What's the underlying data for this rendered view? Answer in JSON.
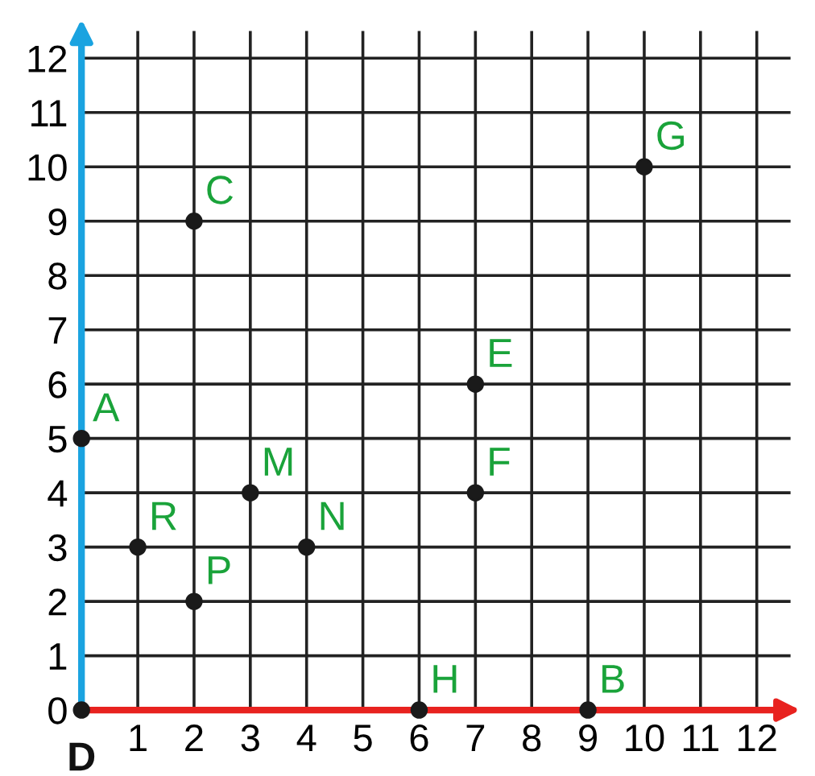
{
  "chart_data": {
    "type": "scatter",
    "series": [
      {
        "color": "#1a1a1a",
        "x": [
          0,
          9,
          2,
          0,
          7,
          7,
          10,
          6,
          3,
          4,
          2,
          1
        ],
        "values": [
          5,
          0,
          9,
          0,
          6,
          4,
          10,
          0,
          4,
          3,
          2,
          3
        ]
      }
    ],
    "marker": "circle",
    "annotations": [
      {
        "text": "A",
        "x": 0,
        "y": 5
      },
      {
        "text": "B",
        "x": 9,
        "y": 0
      },
      {
        "text": "C",
        "x": 2,
        "y": 9
      },
      {
        "text": "D",
        "x": 0,
        "y": 0
      },
      {
        "text": "E",
        "x": 7,
        "y": 6
      },
      {
        "text": "F",
        "x": 7,
        "y": 4
      },
      {
        "text": "G",
        "x": 10,
        "y": 10
      },
      {
        "text": "H",
        "x": 6,
        "y": 0
      },
      {
        "text": "M",
        "x": 3,
        "y": 4
      },
      {
        "text": "N",
        "x": 4,
        "y": 3
      },
      {
        "text": "P",
        "x": 2,
        "y": 2
      },
      {
        "text": "R",
        "x": 1,
        "y": 3
      }
    ],
    "xlim": [
      0,
      12.6
    ],
    "ylim": [
      0,
      12.5
    ],
    "xticks": [
      1,
      2,
      3,
      4,
      5,
      6,
      7,
      8,
      9,
      10,
      11,
      12
    ],
    "yticks": [
      0,
      1,
      2,
      3,
      4,
      5,
      6,
      7,
      8,
      9,
      10,
      11,
      12
    ],
    "grid": true
  }
}
